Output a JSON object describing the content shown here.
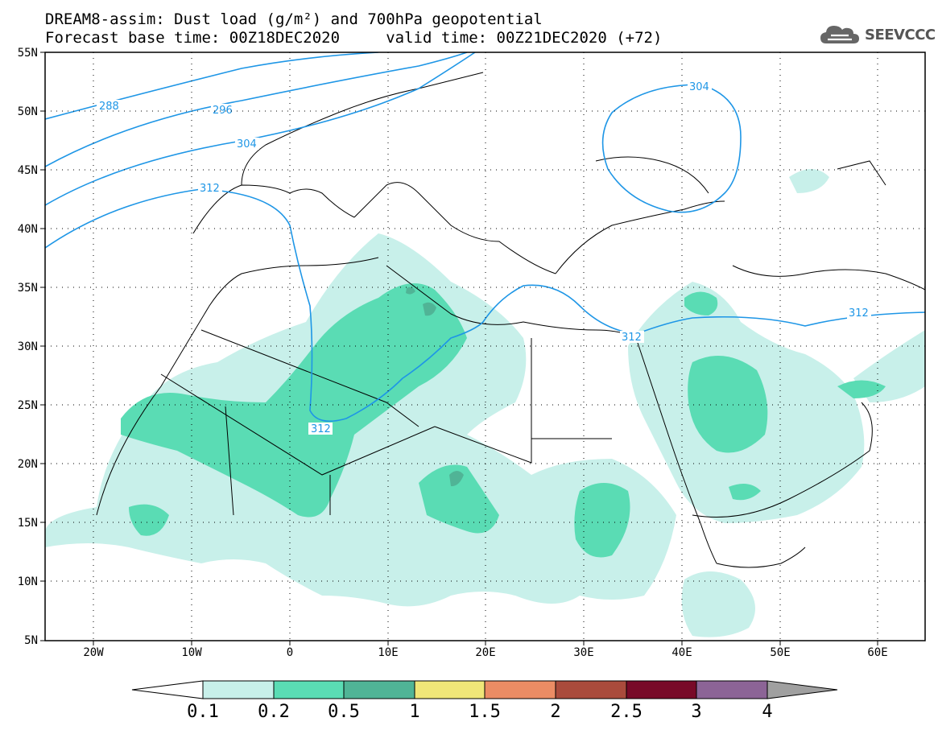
{
  "header": {
    "line1": "DREAM8-assim: Dust load (g/m²) and 700hPa geopotential",
    "line2": "Forecast base time: 00Z18DEC2020     valid time: 00Z21DEC2020 (+72)"
  },
  "logo": {
    "text": "SEEVCCC",
    "icon": "cloud-logo-icon"
  },
  "map": {
    "lat_labels": [
      "55N",
      "50N",
      "45N",
      "40N",
      "35N",
      "30N",
      "25N",
      "20N",
      "15N",
      "10N",
      "5N"
    ],
    "lon_labels": [
      "20W",
      "10W",
      "0",
      "10E",
      "20E",
      "30E",
      "40E",
      "50E",
      "60E"
    ],
    "contour_labels": {
      "c288": "288",
      "c296": "296",
      "c304_west": "304",
      "c304_east": "304",
      "c312_west": "312",
      "c312_mid": "312",
      "c312_south": "312",
      "c312_east": "312"
    },
    "contour_color": "#1e96e6",
    "dust_colors": {
      "low": "#c8f0ea",
      "mid": "#5adcb4",
      "high": "#50b496"
    }
  },
  "colorbar": {
    "ticks": [
      "0.1",
      "0.2",
      "0.5",
      "1",
      "1.5",
      "2",
      "2.5",
      "3",
      "4"
    ],
    "colors": [
      "#c8f0ea",
      "#5adcb4",
      "#50b496",
      "#f0e678",
      "#eb8c64",
      "#aa4b3c",
      "#780a28",
      "#8c6496",
      "#a0a0a0"
    ]
  }
}
